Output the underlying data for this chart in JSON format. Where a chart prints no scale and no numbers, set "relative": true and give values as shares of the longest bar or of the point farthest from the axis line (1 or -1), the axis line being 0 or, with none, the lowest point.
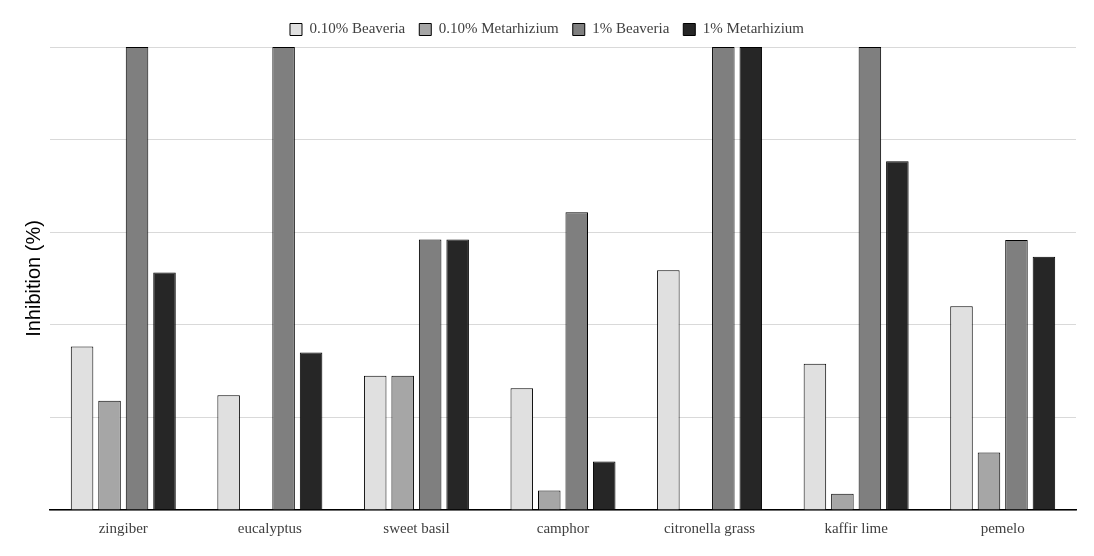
{
  "chart_data": {
    "type": "bar",
    "ylabel": "Inhibition (%)",
    "relative": true,
    "grid": "y",
    "legend": "top",
    "categories": [
      "zingiber",
      "eucalyptus",
      "sweet basil",
      "camphor",
      "citronella grass",
      "kaffir lime",
      "pemelo"
    ],
    "series": [
      {
        "name": "0.10% Beaveria",
        "color": "#e0e0e0",
        "values": [
          0.353,
          0.248,
          0.29,
          0.263,
          0.518,
          0.316,
          0.44
        ]
      },
      {
        "name": "0.10% Metarhizium",
        "color": "#a6a6a6",
        "values": [
          0.236,
          0,
          0.29,
          0.042,
          0,
          0.035,
          0.124
        ]
      },
      {
        "name": "1% Beaveria",
        "color": "#7f7f7f",
        "values": [
          1,
          1,
          0.584,
          0.643,
          1,
          1,
          0.583
        ]
      },
      {
        "name": "1% Metarhizium",
        "color": "#262626",
        "values": [
          0.513,
          0.34,
          0.584,
          0.105,
          1,
          0.753,
          0.547
        ]
      }
    ]
  }
}
